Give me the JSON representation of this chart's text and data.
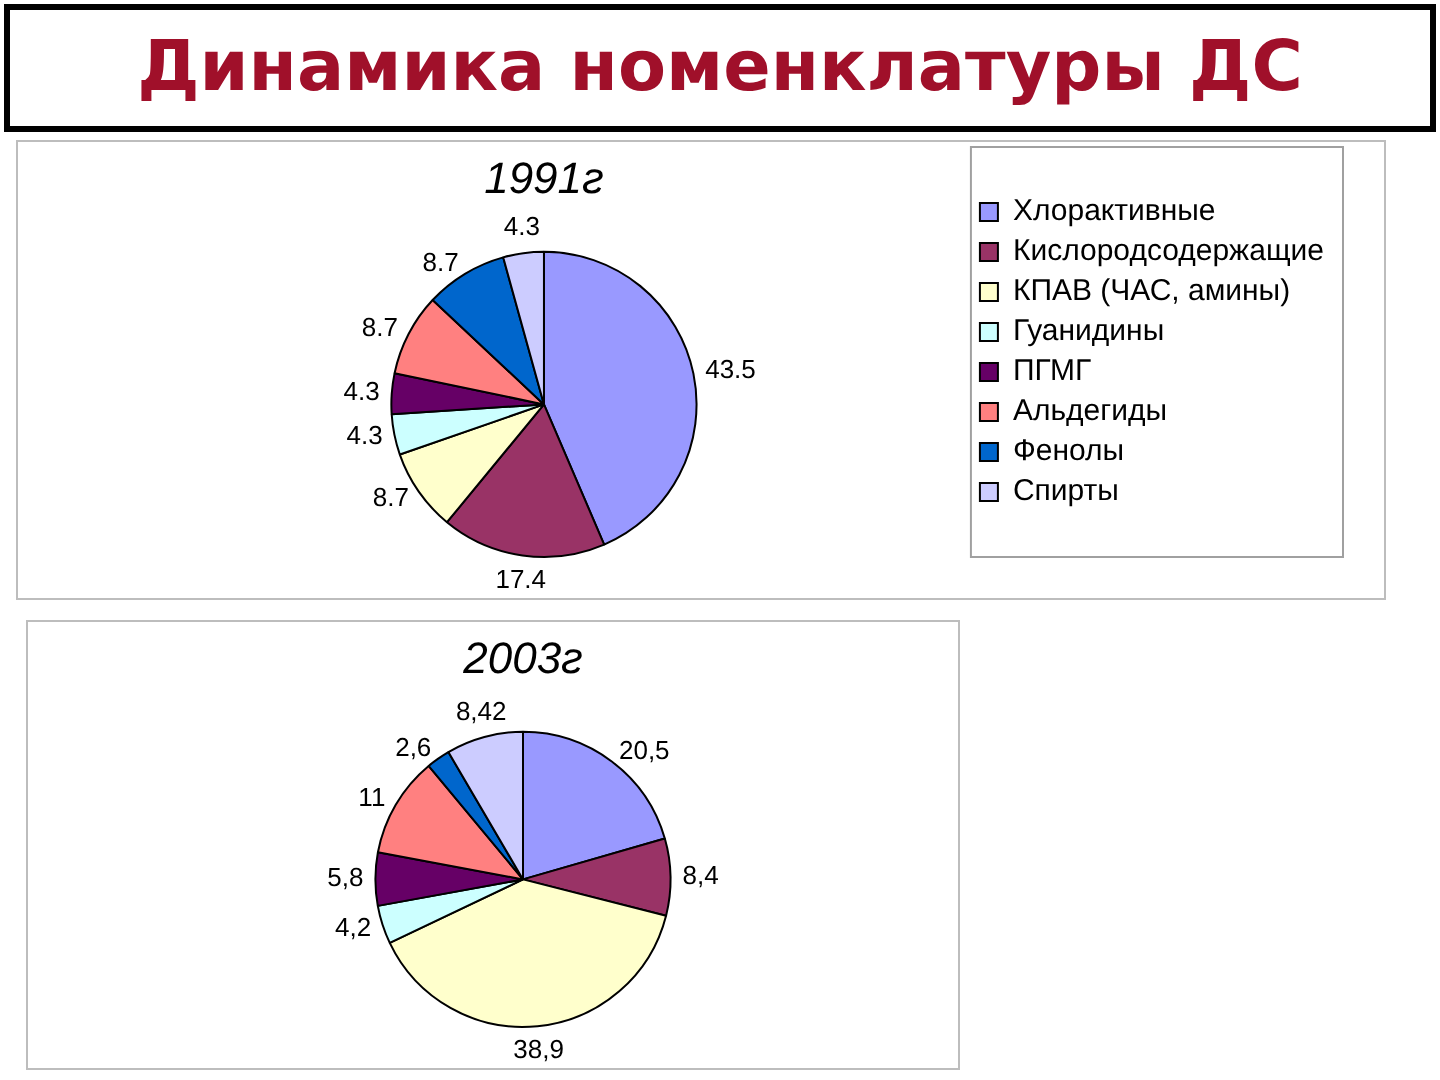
{
  "chart_data": [
    {
      "type": "pie",
      "title": "1991г",
      "annotations": [
        "Динамика номенклатуры ДС"
      ],
      "categories": [
        "Хлорактивные",
        "Кислородсодержащие",
        "КПАВ (ЧАС, амины)",
        "Гуанидины",
        "ПГМГ",
        "Альдегиды",
        "Фенолы",
        "Спирты"
      ],
      "values": [
        43.5,
        17.4,
        8.7,
        4.3,
        4.3,
        8.7,
        8.7,
        4.3
      ],
      "colors": [
        "#9999ff",
        "#993366",
        "#ffffcc",
        "#ccffff",
        "#660066",
        "#ff8080",
        "#0066cc",
        "#ccccff"
      ],
      "data_labels": true,
      "legend": "right"
    },
    {
      "type": "pie",
      "title": "2003г",
      "categories": [
        null,
        null,
        null,
        null,
        null,
        null,
        null,
        null
      ],
      "values": [
        20.5,
        8.4,
        38.9,
        4.2,
        5.8,
        11,
        2.6,
        8.42
      ],
      "colors": [
        "#9999ff",
        "#993366",
        "#ffffcc",
        "#ccffff",
        "#660066",
        "#ff8080",
        "#0066cc",
        "#ccccff"
      ],
      "value_labels": [
        "20,5",
        "8,4",
        "38,9",
        "4,2",
        "5,8",
        "11",
        "2,6",
        "8,42"
      ]
    }
  ]
}
